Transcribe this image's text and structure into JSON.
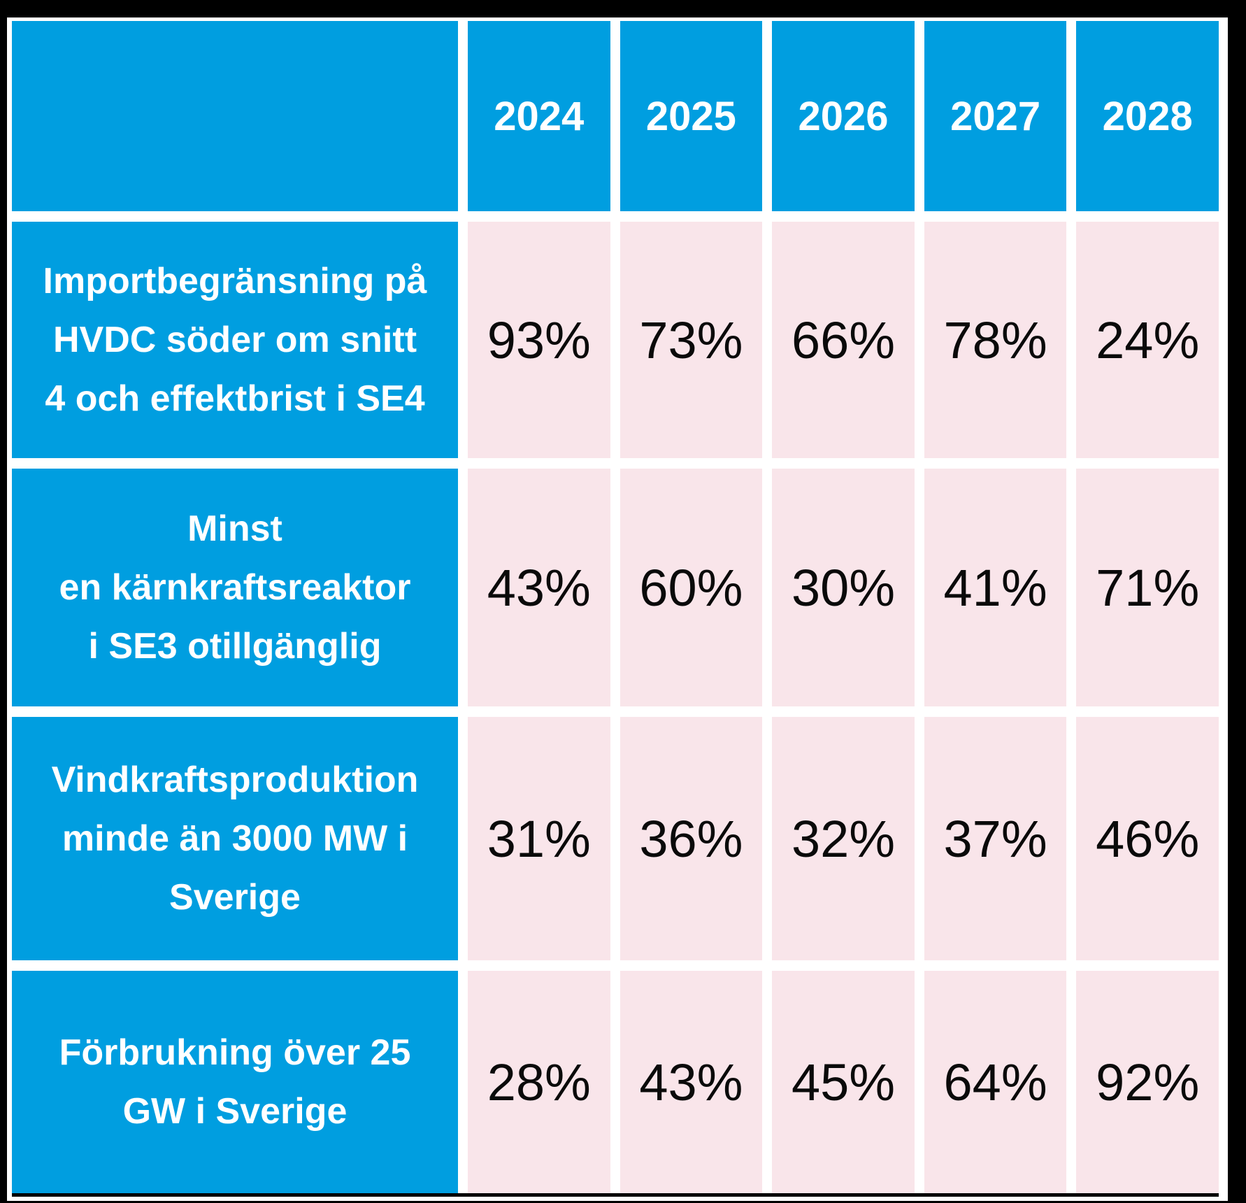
{
  "table": {
    "corner_label": "",
    "years": [
      "2024",
      "2025",
      "2026",
      "2027",
      "2028"
    ],
    "rows": [
      {
        "label": "Importbegränsning på\nHVDC söder om snitt\n4 och effektbrist i SE4",
        "values": [
          "93%",
          "73%",
          "66%",
          "78%",
          "24%"
        ]
      },
      {
        "label": "Minst\nen kärnkraftsreaktor\ni SE3 otillgänglig",
        "values": [
          "43%",
          "60%",
          "30%",
          "41%",
          "71%"
        ]
      },
      {
        "label": "Vindkraftsproduktion\nminde än 3000 MW i\nSverige",
        "values": [
          "31%",
          "36%",
          "32%",
          "37%",
          "46%"
        ]
      },
      {
        "label": "Förbrukning över 25\nGW i Sverige",
        "values": [
          "28%",
          "43%",
          "45%",
          "64%",
          "92%"
        ]
      }
    ],
    "colors": {
      "header_blue": "#009EE0",
      "cell_pink": "#F9E5EA",
      "gridline_white": "#FFFFFF",
      "canvas_black": "#000000",
      "label_text": "#FFFFFF",
      "value_text": "#0A0A0A"
    }
  },
  "chart_data": {
    "type": "table",
    "title": "",
    "columns": [
      "",
      "2024",
      "2025",
      "2026",
      "2027",
      "2028"
    ],
    "rows": [
      {
        "label": "Importbegränsning på HVDC söder om snitt 4 och effektbrist i SE4",
        "values_percent": [
          93,
          73,
          66,
          78,
          24
        ]
      },
      {
        "label": "Minst en kärnkraftsreaktor i SE3 otillgänglig",
        "values_percent": [
          43,
          60,
          30,
          41,
          71
        ]
      },
      {
        "label": "Vindkraftsproduktion minde än 3000 MW i Sverige",
        "values_percent": [
          31,
          36,
          32,
          37,
          46
        ]
      },
      {
        "label": "Förbrukning över 25 GW i Sverige",
        "values_percent": [
          28,
          43,
          45,
          64,
          92
        ]
      }
    ],
    "layout": {
      "header_fill": "#009EE0",
      "row_label_fill": "#009EE0",
      "data_cell_fill": "#F9E5EA",
      "grid_color": "#FFFFFF",
      "background": "#000000"
    }
  }
}
